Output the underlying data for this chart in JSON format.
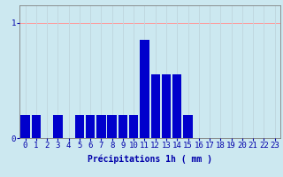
{
  "categories": [
    0,
    1,
    2,
    3,
    4,
    5,
    6,
    7,
    8,
    9,
    10,
    11,
    12,
    13,
    14,
    15,
    16,
    17,
    18,
    19,
    20,
    21,
    22,
    23
  ],
  "values": [
    0.2,
    0.2,
    0.0,
    0.2,
    0.0,
    0.2,
    0.2,
    0.2,
    0.2,
    0.2,
    0.2,
    0.85,
    0.55,
    0.55,
    0.55,
    0.2,
    0.0,
    0.0,
    0.0,
    0.0,
    0.0,
    0.0,
    0.0,
    0.0
  ],
  "bar_color": "#0000cc",
  "background_color": "#cce8f0",
  "grid_color_h": "#ff9999",
  "grid_color_v": "#c0d8e0",
  "text_color": "#0000aa",
  "xlabel": "Précipitations 1h ( mm )",
  "ytick_labels": [
    "0",
    "1"
  ],
  "yticks": [
    0,
    1
  ],
  "ylim": [
    0,
    1.15
  ],
  "xlim": [
    -0.5,
    23.5
  ],
  "xlabel_fontsize": 7,
  "tick_fontsize": 6.5
}
